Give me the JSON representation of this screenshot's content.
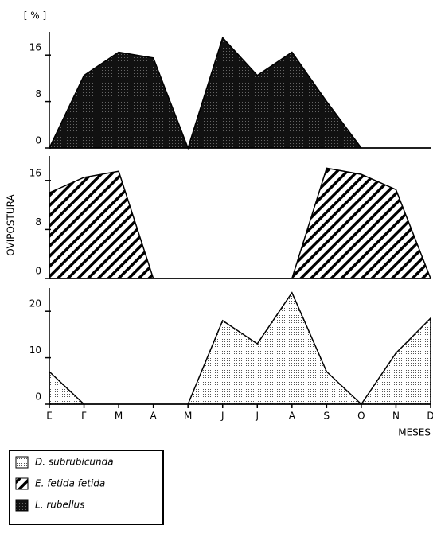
{
  "chart_data": [
    {
      "type": "area",
      "y_unit": "[ % ]",
      "series": [
        {
          "name": "L. rubellus",
          "fill": "solid",
          "values": [
            0,
            12.5,
            16.5,
            15.5,
            0,
            19,
            12.5,
            16.5,
            8,
            0,
            0,
            0
          ]
        }
      ],
      "ylim": [
        0,
        20
      ],
      "yticks": [
        0,
        8,
        16
      ]
    },
    {
      "type": "area",
      "ylabel": "OVIPOSTURA",
      "series": [
        {
          "name": "E. fetida fetida",
          "fill": "hatch",
          "values": [
            14,
            16.5,
            17.5,
            0,
            0,
            0,
            0,
            0,
            18,
            17,
            14.5,
            0
          ]
        }
      ],
      "ylim": [
        0,
        20
      ],
      "yticks": [
        0,
        8,
        16
      ]
    },
    {
      "type": "area",
      "xlabel": "MESES",
      "categories": [
        "E",
        "F",
        "M",
        "A",
        "M",
        "J",
        "J",
        "A",
        "S",
        "O",
        "N",
        "D"
      ],
      "series": [
        {
          "name": "D. subrubicunda",
          "fill": "dots",
          "values": [
            7,
            0,
            0,
            0,
            0,
            18,
            13,
            24,
            7,
            0,
            11,
            18.5
          ]
        }
      ],
      "ylim": [
        0,
        25
      ],
      "yticks": [
        0,
        10,
        20
      ]
    }
  ]
}
